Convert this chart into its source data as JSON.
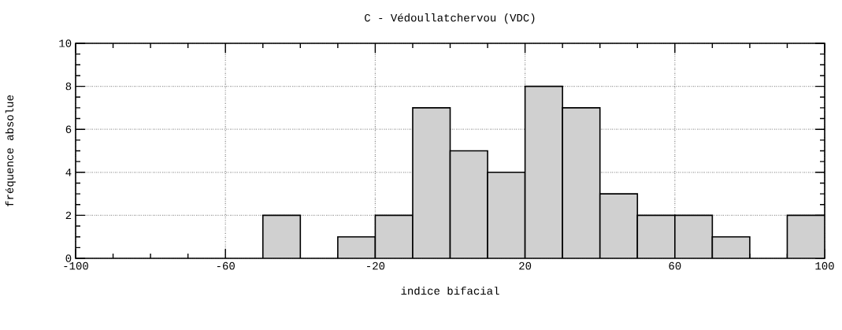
{
  "chart_data": {
    "type": "histogram",
    "title": "C - Védoullatchervou (VDC)",
    "xlabel": "indice bifacial",
    "ylabel": "fréquence absolue",
    "bins": [
      -100,
      -90,
      -80,
      -70,
      -60,
      -50,
      -40,
      -30,
      -20,
      -10,
      0,
      10,
      20,
      30,
      40,
      50,
      60,
      70,
      80,
      90,
      100
    ],
    "values": [
      0,
      0,
      0,
      0,
      0,
      2,
      0,
      1,
      2,
      7,
      5,
      4,
      8,
      7,
      3,
      2,
      2,
      1,
      0,
      2
    ],
    "color": "#d0d0d0",
    "xlim": [
      -100,
      100
    ],
    "ylim": [
      0,
      10
    ],
    "xticks": [
      -100,
      -60,
      -20,
      20,
      60,
      100
    ],
    "yticks": [
      0,
      2,
      4,
      6,
      8,
      10
    ],
    "grid": true
  }
}
